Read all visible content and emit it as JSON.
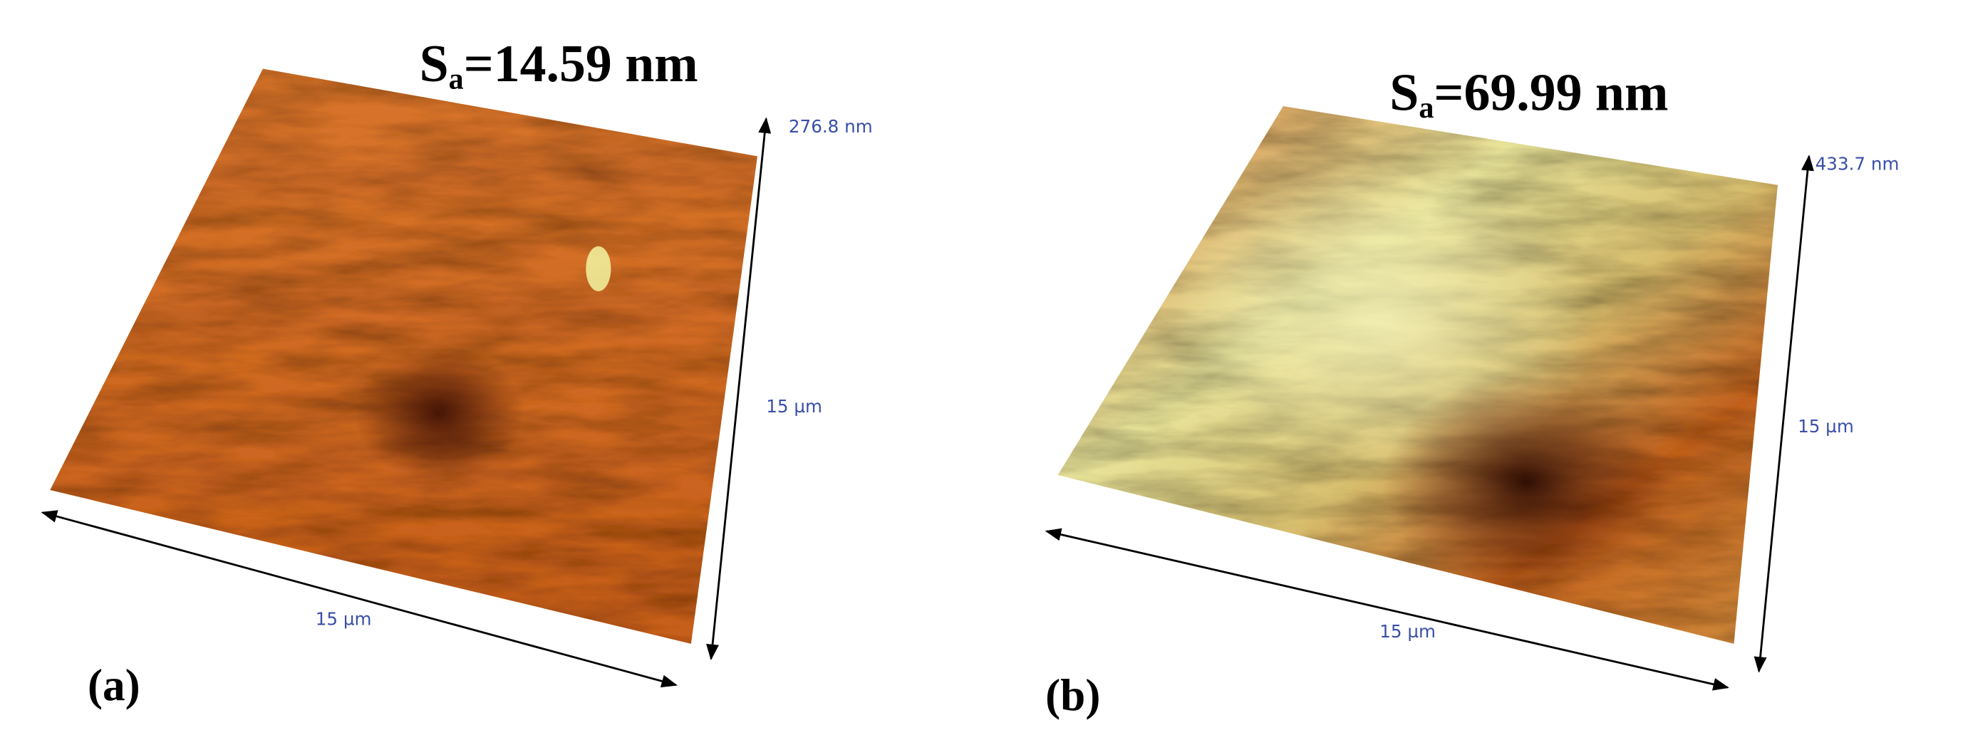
{
  "panels": [
    {
      "label": "(a)",
      "roughness": {
        "symbol": "S",
        "subscript": "a",
        "value": "=14.59 nm"
      },
      "height_label": "276.8 nm",
      "y_extent_label": "15 µm",
      "x_extent_label": "15 µm"
    },
    {
      "label": "(b)",
      "roughness": {
        "symbol": "S",
        "subscript": "a",
        "value": "=69.99 nm"
      },
      "height_label": "433.7 nm",
      "y_extent_label": "15 µm",
      "x_extent_label": "15 µm"
    }
  ]
}
